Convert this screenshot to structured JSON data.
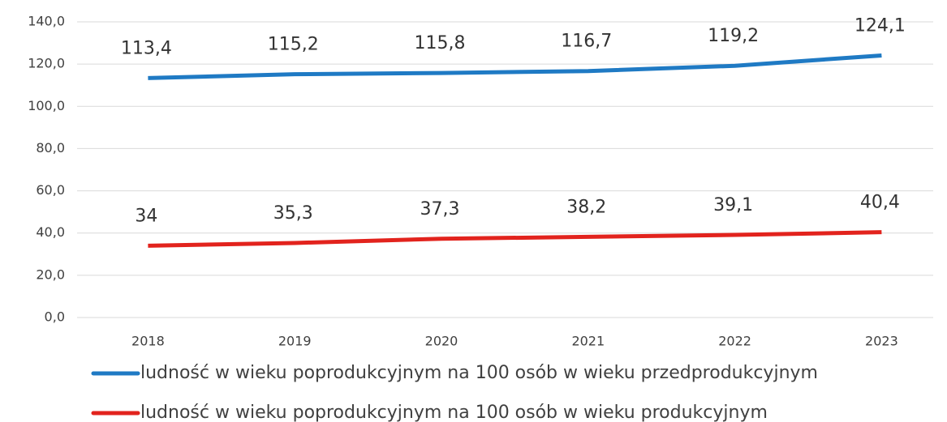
{
  "chart_data": {
    "type": "line",
    "categories": [
      "2018",
      "2019",
      "2020",
      "2021",
      "2022",
      "2023"
    ],
    "series": [
      {
        "name": "ludność w wieku poprodukcyjnym na 100 osób w wieku przedprodukcyjnym",
        "color": "#1f7ac4",
        "values": [
          113.4,
          115.2,
          115.8,
          116.7,
          119.2,
          124.1
        ],
        "value_labels": [
          "113,4",
          "115,2",
          "115,8",
          "116,7",
          "119,2",
          "124,1"
        ]
      },
      {
        "name": "ludność w wieku poprodukcyjnym na 100 osób w wieku produkcyjnym",
        "color": "#e2231d",
        "values": [
          34,
          35.3,
          37.3,
          38.2,
          39.1,
          40.4
        ],
        "value_labels": [
          "34",
          "35,3",
          "37,3",
          "38,2",
          "39,1",
          "40,4"
        ]
      }
    ],
    "ylim": [
      0,
      140
    ],
    "yticks": [
      {
        "value": 0,
        "label": "0,0"
      },
      {
        "value": 20,
        "label": "20,0"
      },
      {
        "value": 40,
        "label": "40,0"
      },
      {
        "value": 60,
        "label": "60,0"
      },
      {
        "value": 80,
        "label": "80,0"
      },
      {
        "value": 100,
        "label": "100,0"
      },
      {
        "value": 120,
        "label": "120,0"
      },
      {
        "value": 140,
        "label": "140,0"
      }
    ],
    "grid": true,
    "legend": "bottom"
  }
}
